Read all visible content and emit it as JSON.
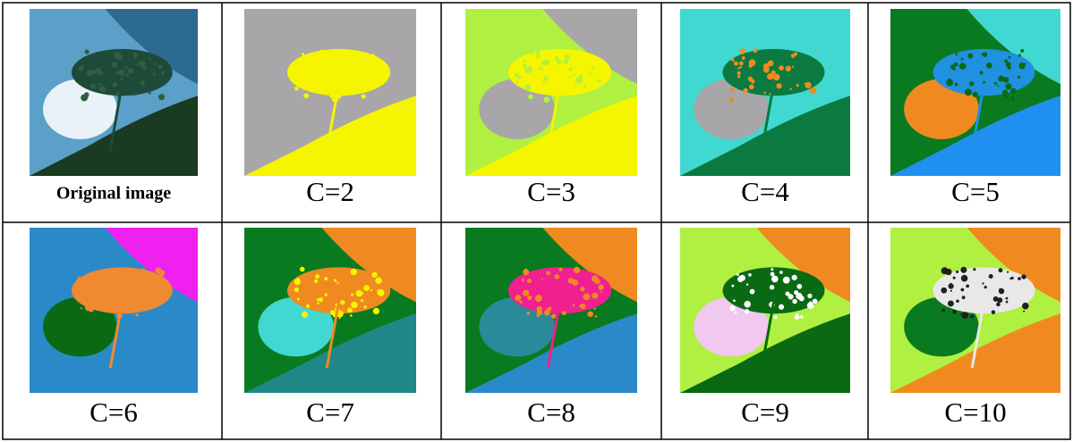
{
  "table": {
    "rows": [
      [
        "Original image",
        "C=2",
        "C=3",
        "C=4",
        "C=5"
      ],
      [
        "C=6",
        "C=7",
        "C=8",
        "C=9",
        "C=10"
      ]
    ]
  }
}
